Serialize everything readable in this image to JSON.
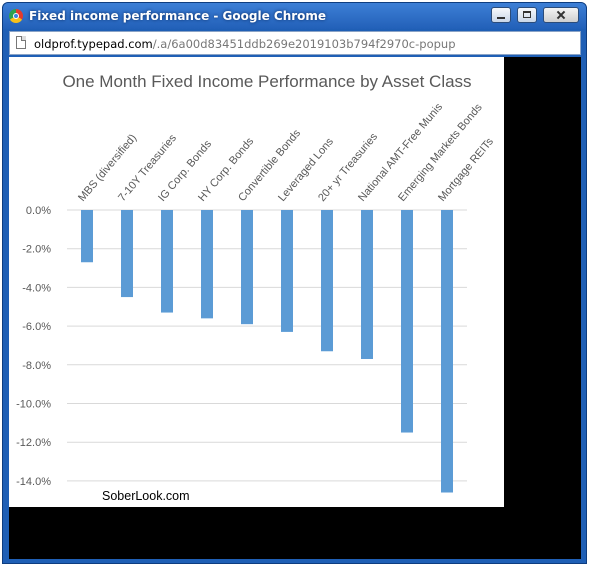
{
  "window": {
    "title": "Fixed income performance - Google Chrome",
    "icon": "chrome-icon"
  },
  "address_bar": {
    "host": "oldprof.typepad.com",
    "path": "/.a/6a00d83451ddb269e2019103b794f2970c-popup"
  },
  "chart_data": {
    "type": "bar",
    "title": "One Month Fixed Income Performance by Asset Class",
    "categories": [
      "MBS (diversified)",
      "7-10Y Treasuries",
      "IG Corp. Bonds",
      "HY Corp. Bonds",
      "Convertible Bonds",
      "Leveraged Lons",
      "20+ yr Treasuries",
      "National AMT-Free Munis",
      "Emerging Markets Bonds",
      "Mortgage REITs"
    ],
    "values": [
      -2.7,
      -4.5,
      -5.3,
      -5.6,
      -5.9,
      -6.3,
      -7.3,
      -7.7,
      -11.5,
      -14.6
    ],
    "ylim": [
      -15,
      0
    ],
    "yticks": [
      "0.0%",
      "-2.0%",
      "-4.0%",
      "-6.0%",
      "-8.0%",
      "-10.0%",
      "-12.0%",
      "-14.0%"
    ],
    "ytick_values": [
      0,
      -2,
      -4,
      -6,
      -8,
      -10,
      -12,
      -14
    ],
    "bar_color": "#5b9bd5",
    "grid": true,
    "watermark": "SoberLook.com"
  }
}
